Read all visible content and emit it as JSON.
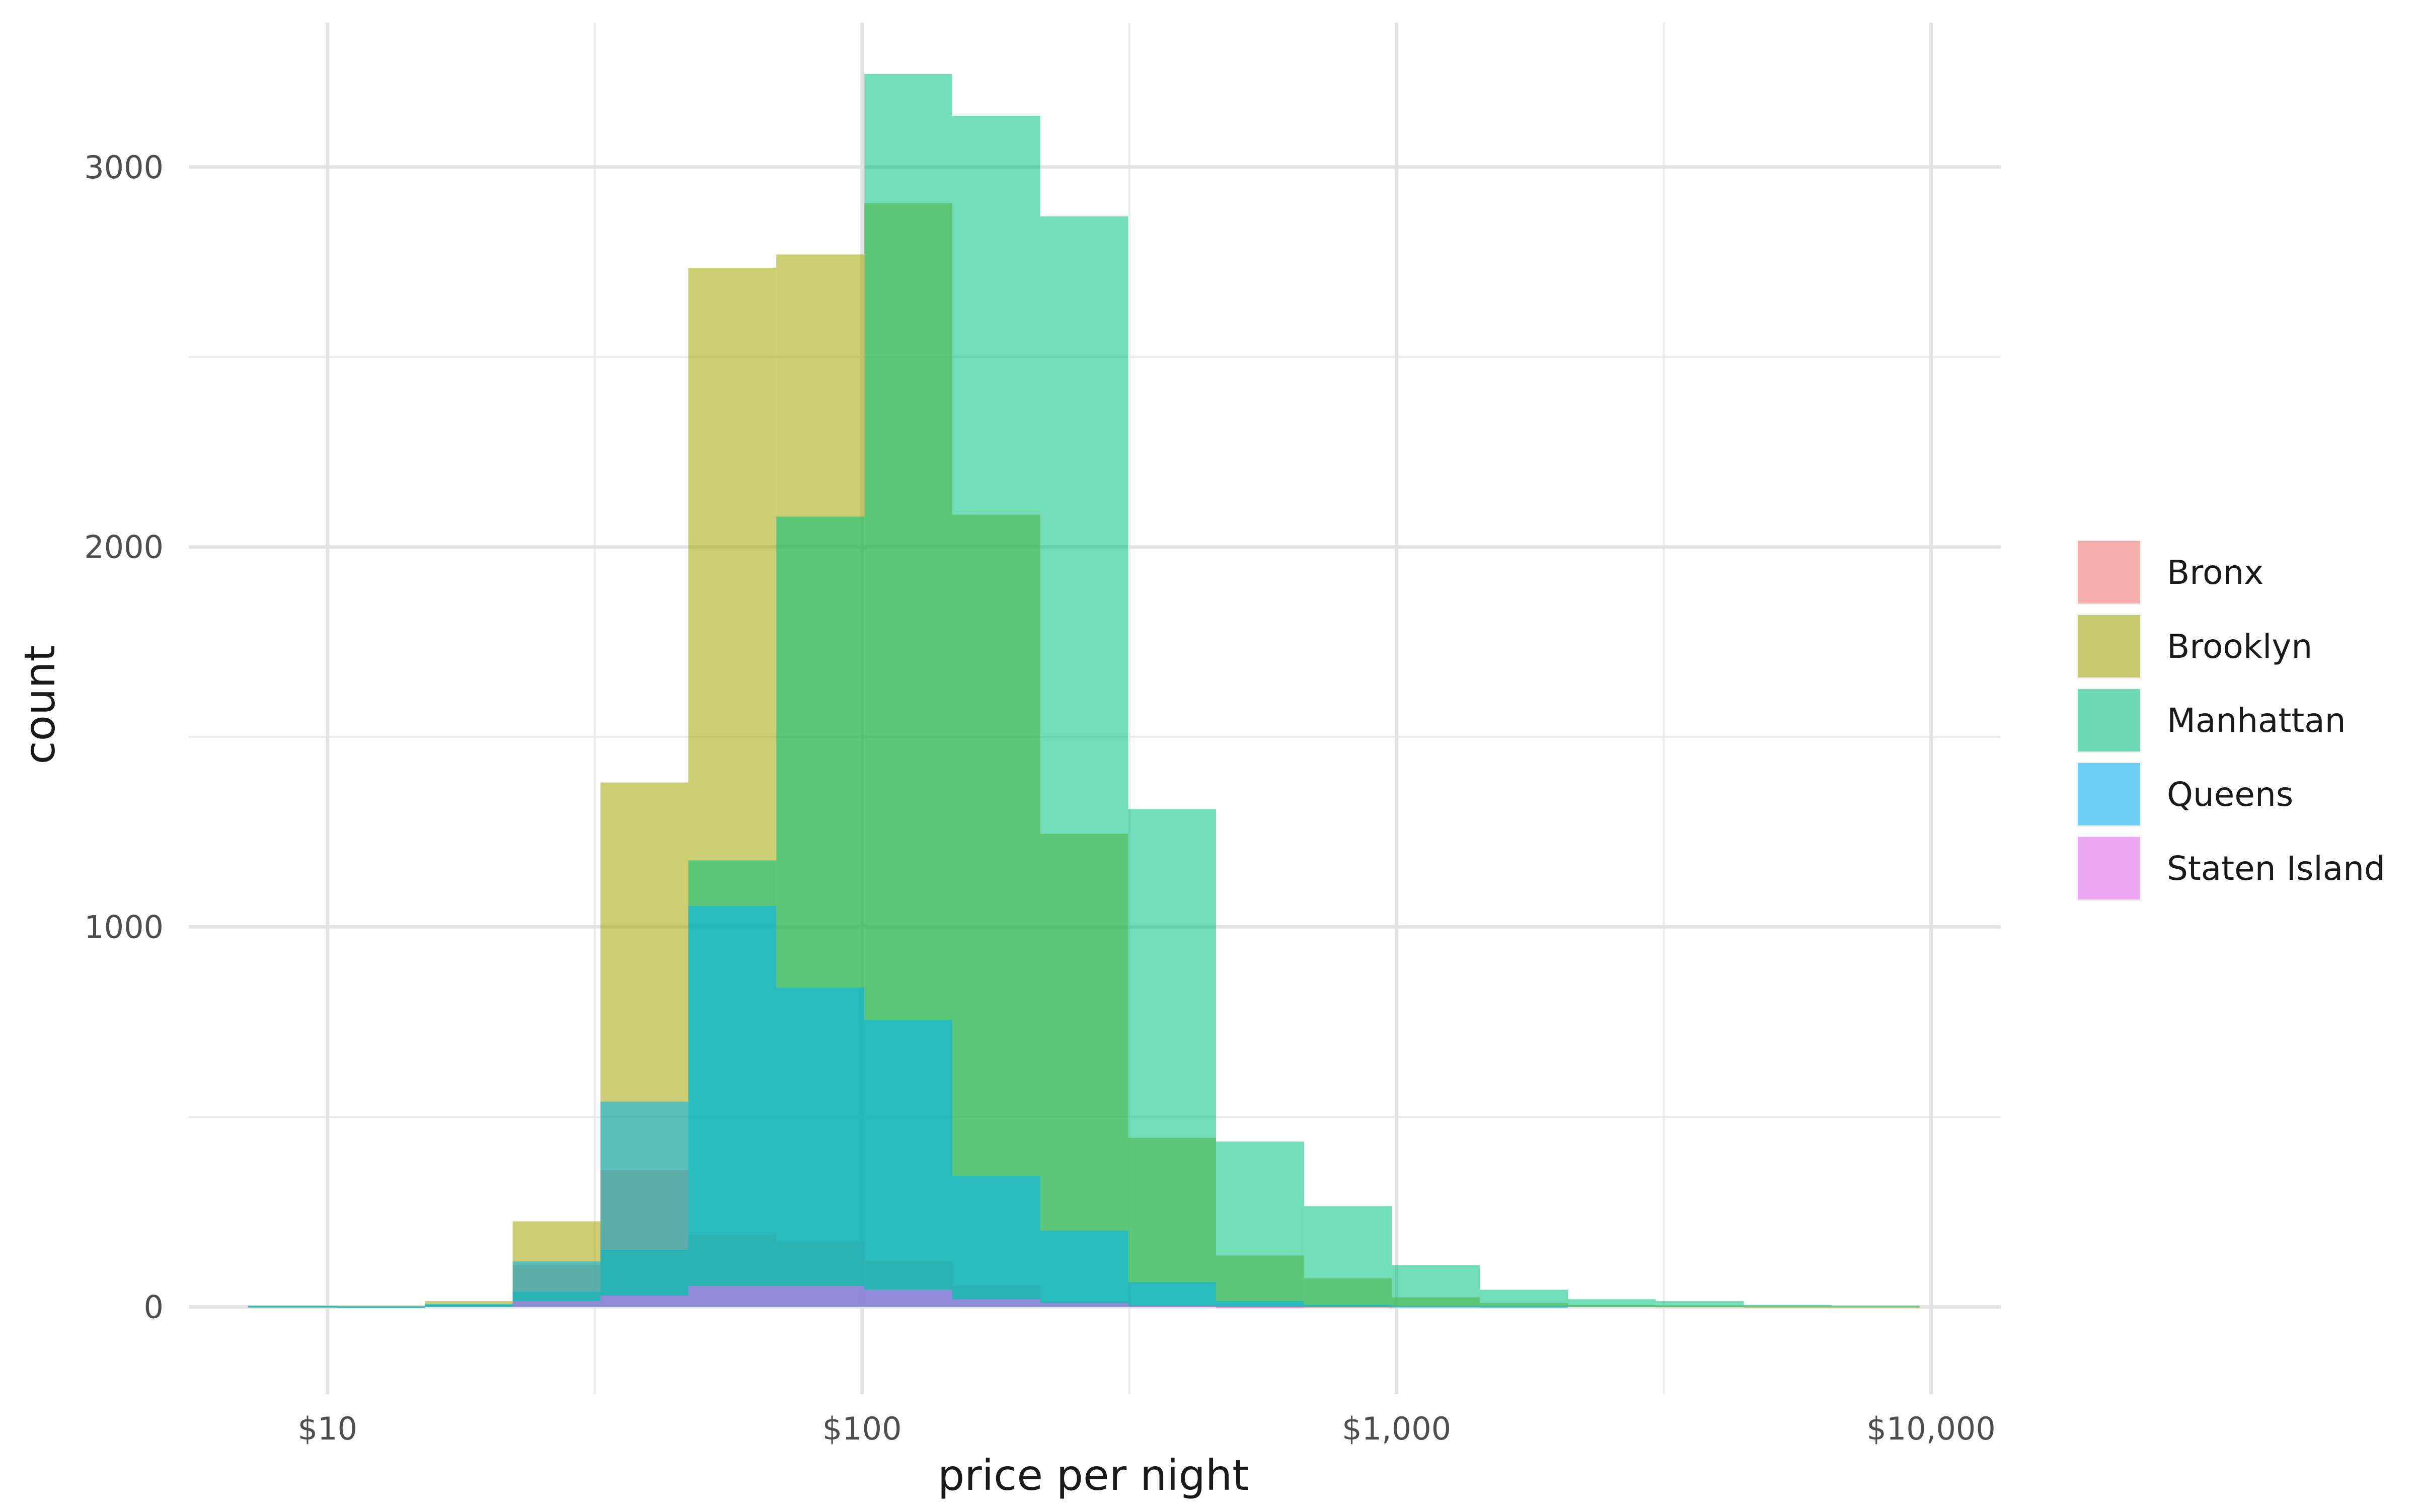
{
  "chart_data": {
    "type": "histogram",
    "title": "",
    "xlabel": "price per night",
    "ylabel": "count",
    "x_scale": "log10",
    "x_ticks": [
      {
        "value": 10,
        "label": "$10"
      },
      {
        "value": 100,
        "label": "$100"
      },
      {
        "value": 1000,
        "label": "$1,000"
      },
      {
        "value": 10000,
        "label": "$10,000"
      }
    ],
    "y_ticks": [
      {
        "value": 0,
        "label": "0"
      },
      {
        "value": 1000,
        "label": "1000"
      },
      {
        "value": 2000,
        "label": "2000"
      },
      {
        "value": 3000,
        "label": "3000"
      }
    ],
    "xlim": [
      5.5,
      13500
    ],
    "ylim": [
      -230,
      3380
    ],
    "grid": true,
    "legend_position": "right",
    "bin_edges": [
      7.1,
      10.4,
      15.2,
      22.2,
      32.4,
      47.3,
      69.1,
      101,
      147.5,
      215.4,
      314.6,
      459.5,
      671.2,
      980.3,
      1431.9,
      2091.4,
      3054.7,
      4461.7,
      6516.8,
      9518.5
    ],
    "series": [
      {
        "name": "Bronx",
        "color": "#F8766D",
        "values": [
          0,
          0,
          0,
          110,
          360,
          190,
          170,
          120,
          55,
          15,
          5,
          2,
          1,
          0,
          0,
          0,
          0,
          0,
          0
        ]
      },
      {
        "name": "Brooklyn",
        "color": "#A3A500",
        "values": [
          2,
          2,
          15,
          225,
          1380,
          2735,
          2770,
          2905,
          2085,
          1245,
          445,
          135,
          75,
          25,
          10,
          5,
          3,
          1,
          1
        ]
      },
      {
        "name": "Manhattan",
        "color": "#00BF7D",
        "values": [
          3,
          1,
          5,
          40,
          150,
          1175,
          2080,
          3245,
          3135,
          2870,
          1310,
          435,
          265,
          110,
          45,
          20,
          15,
          5,
          3
        ]
      },
      {
        "name": "Queens",
        "color": "#00B0F6",
        "values": [
          2,
          1,
          8,
          120,
          540,
          1055,
          840,
          755,
          345,
          200,
          65,
          15,
          5,
          2,
          1,
          0,
          0,
          0,
          0
        ]
      },
      {
        "name": "Staten Island",
        "color": "#E76BF3",
        "values": [
          0,
          0,
          0,
          15,
          30,
          55,
          55,
          45,
          20,
          10,
          3,
          1,
          0,
          0,
          0,
          0,
          0,
          0,
          0
        ]
      }
    ]
  }
}
